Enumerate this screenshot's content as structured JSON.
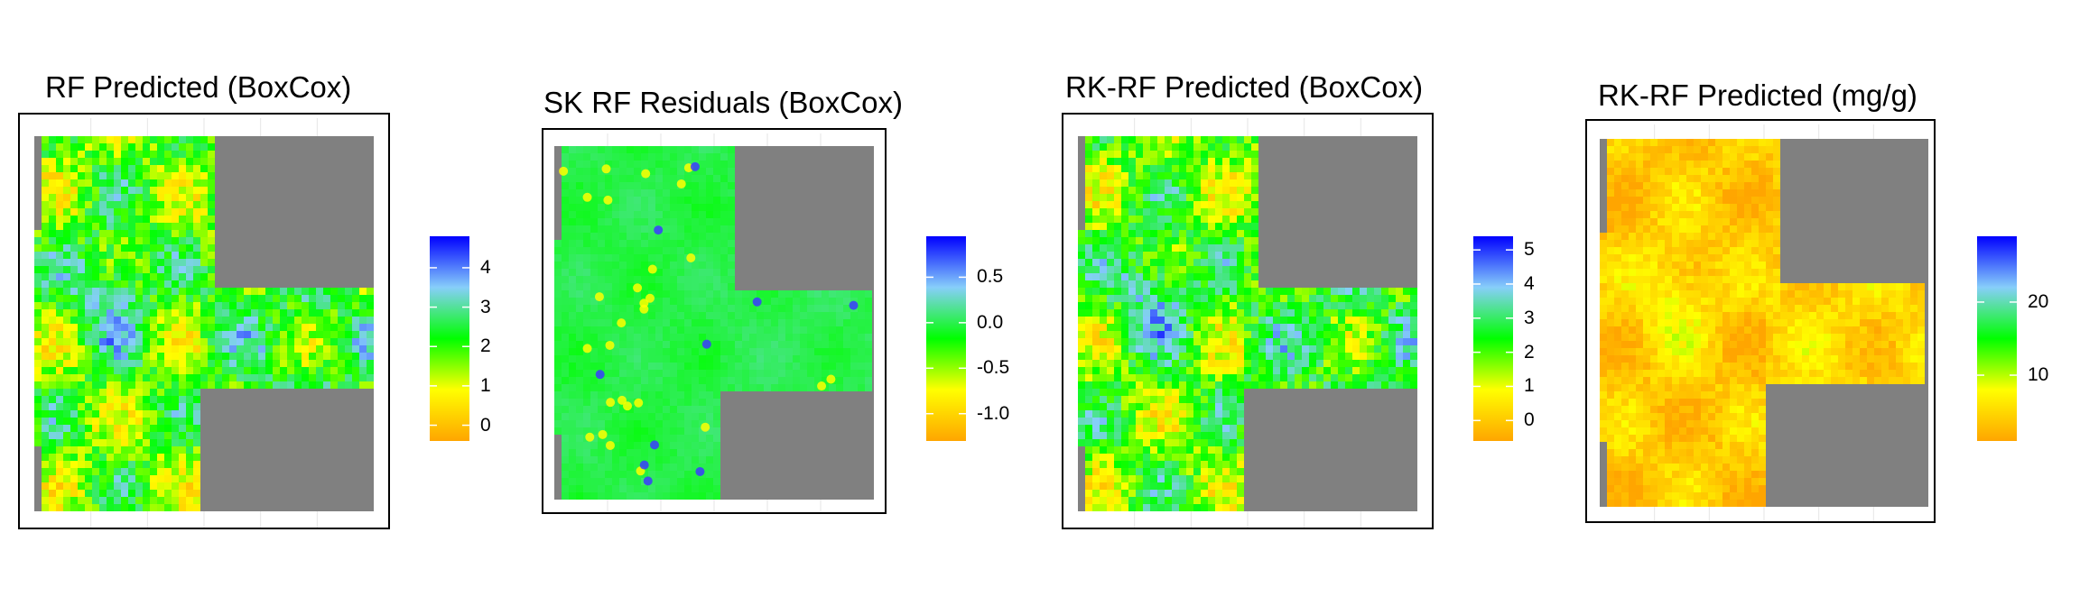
{
  "chart_data": [
    {
      "type": "heatmap",
      "title": "RF Predicted (BoxCox)",
      "legend": {
        "ticks": [
          "4",
          "3",
          "2",
          "1",
          "0"
        ],
        "tick_values": [
          4,
          3,
          2,
          1,
          0
        ],
        "range": [
          -0.4,
          4.8
        ],
        "position": "right"
      },
      "colors": [
        "#ffa500",
        "#ffff00",
        "#00ff00",
        "#87cefa",
        "#0000ff"
      ],
      "background_color": "#808080",
      "field": {
        "base": 0.42,
        "amp": 0.22,
        "hot_blue": 0.3
      }
    },
    {
      "type": "heatmap",
      "title": "SK RF Residuals (BoxCox)",
      "legend": {
        "ticks": [
          "0.5",
          "0.0",
          "-0.5",
          "-1.0"
        ],
        "tick_values": [
          0.5,
          0.0,
          -0.5,
          -1.0
        ],
        "range": [
          -1.3,
          0.95
        ],
        "position": "right"
      },
      "colors": [
        "#ffa500",
        "#ffff00",
        "#00ff00",
        "#87cefa",
        "#0000ff"
      ],
      "background_color": "#808080",
      "field": {
        "base": 0.57,
        "amp": 0.03,
        "hot_blue": 0.0
      }
    },
    {
      "type": "heatmap",
      "title": "RK-RF Predicted (BoxCox)",
      "legend": {
        "ticks": [
          "5",
          "4",
          "3",
          "2",
          "1",
          "0"
        ],
        "tick_values": [
          5,
          4,
          3,
          2,
          1,
          0
        ],
        "range": [
          -0.6,
          5.4
        ],
        "position": "right"
      },
      "colors": [
        "#ffa500",
        "#ffff00",
        "#00ff00",
        "#87cefa",
        "#0000ff"
      ],
      "background_color": "#808080",
      "field": {
        "base": 0.42,
        "amp": 0.22,
        "hot_blue": 0.3
      }
    },
    {
      "type": "heatmap",
      "title": "RK-RF Predicted (mg/g)",
      "legend": {
        "ticks": [
          "20",
          "10"
        ],
        "tick_values": [
          20,
          10
        ],
        "range": [
          1,
          29
        ],
        "position": "right"
      },
      "colors": [
        "#ffa500",
        "#ffff00",
        "#00ff00",
        "#87cefa",
        "#0000ff"
      ],
      "background_color": "#808080",
      "field": {
        "base": 0.1,
        "amp": 0.1,
        "hot_blue": 0.15
      }
    }
  ]
}
